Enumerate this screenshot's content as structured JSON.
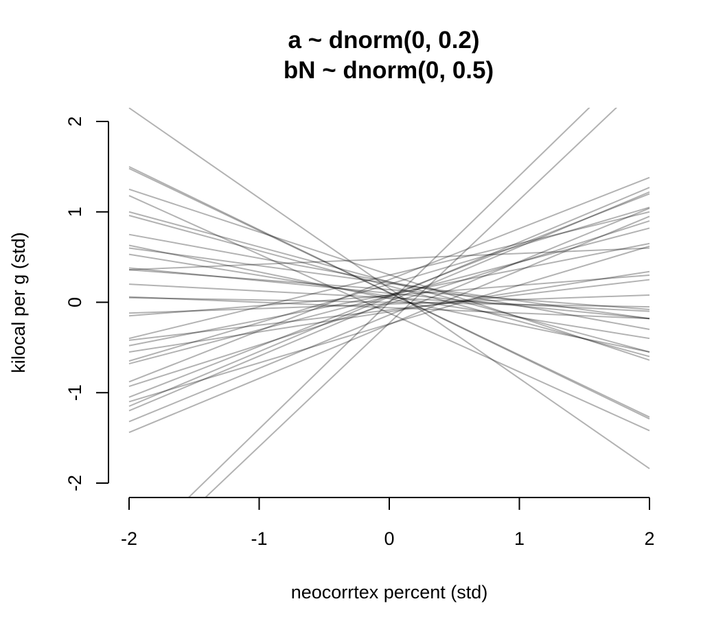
{
  "chart_data": {
    "type": "line",
    "title": "a ~ dnorm(0, 0.2)",
    "subtitle": "bN ~ dnorm(0, 0.5)",
    "xlabel": "neocorrtex percent (std)",
    "ylabel": "kilocal per g (std)",
    "xlim": [
      -2,
      2
    ],
    "ylim": [
      -2,
      2
    ],
    "x_ticks": [
      "-2",
      "-1",
      "0",
      "1",
      "2"
    ],
    "y_ticks": [
      "-2",
      "-1",
      "0",
      "1",
      "2"
    ],
    "grid": false,
    "legend": "none",
    "line_color": "#000000",
    "line_opacity": 0.3,
    "series": [
      {
        "x": [
          -2,
          2
        ],
        "y": [
          2.15,
          -1.84
        ]
      },
      {
        "x": [
          -2,
          2
        ],
        "y": [
          1.5,
          -1.29
        ]
      },
      {
        "x": [
          -2,
          2
        ],
        "y": [
          1.48,
          -1.27
        ]
      },
      {
        "x": [
          -2,
          2
        ],
        "y": [
          1.25,
          -0.64
        ]
      },
      {
        "x": [
          -2,
          2
        ],
        "y": [
          1.18,
          -1.42
        ]
      },
      {
        "x": [
          -2,
          2
        ],
        "y": [
          1.0,
          -0.55
        ]
      },
      {
        "x": [
          -2,
          2
        ],
        "y": [
          0.96,
          -0.6
        ]
      },
      {
        "x": [
          -2,
          2
        ],
        "y": [
          0.75,
          -0.3
        ]
      },
      {
        "x": [
          -2,
          2
        ],
        "y": [
          0.63,
          -0.55
        ]
      },
      {
        "x": [
          -2,
          2
        ],
        "y": [
          0.6,
          -0.18
        ]
      },
      {
        "x": [
          -2,
          2
        ],
        "y": [
          0.53,
          -0.4
        ]
      },
      {
        "x": [
          -2,
          2
        ],
        "y": [
          0.38,
          -0.18
        ]
      },
      {
        "x": [
          -2,
          2
        ],
        "y": [
          0.36,
          -0.08
        ]
      },
      {
        "x": [
          -2,
          2
        ],
        "y": [
          0.36,
          0.6
        ]
      },
      {
        "x": [
          -2,
          2
        ],
        "y": [
          0.2,
          -0.1
        ]
      },
      {
        "x": [
          -2,
          2
        ],
        "y": [
          0.06,
          -0.18
        ]
      },
      {
        "x": [
          -2,
          2
        ],
        "y": [
          0.05,
          -0.05
        ]
      },
      {
        "x": [
          -2,
          2
        ],
        "y": [
          -0.12,
          0.08
        ]
      },
      {
        "x": [
          -2,
          2
        ],
        "y": [
          -0.15,
          0.3
        ]
      },
      {
        "x": [
          -2,
          2
        ],
        "y": [
          -0.4,
          1.0
        ]
      },
      {
        "x": [
          -2,
          2
        ],
        "y": [
          -0.42,
          0.25
        ]
      },
      {
        "x": [
          -2,
          2
        ],
        "y": [
          -0.48,
          0.65
        ]
      },
      {
        "x": [
          -2,
          2
        ],
        "y": [
          -0.55,
          0.34
        ]
      },
      {
        "x": [
          -2,
          2
        ],
        "y": [
          -0.65,
          1.05
        ]
      },
      {
        "x": [
          -2,
          2
        ],
        "y": [
          -0.68,
          0.82
        ]
      },
      {
        "x": [
          -2,
          2
        ],
        "y": [
          -0.88,
          1.38
        ]
      },
      {
        "x": [
          -2,
          2
        ],
        "y": [
          -0.93,
          0.9
        ]
      },
      {
        "x": [
          -2,
          2
        ],
        "y": [
          -1.05,
          1.2
        ]
      },
      {
        "x": [
          -2,
          2
        ],
        "y": [
          -1.1,
          0.62
        ]
      },
      {
        "x": [
          -2,
          2
        ],
        "y": [
          -1.15,
          1.27
        ]
      },
      {
        "x": [
          -2,
          2
        ],
        "y": [
          -1.2,
          1.22
        ]
      },
      {
        "x": [
          -2,
          2
        ],
        "y": [
          -1.32,
          1.04
        ]
      },
      {
        "x": [
          -2,
          2
        ],
        "y": [
          -1.44,
          0.95
        ]
      },
      {
        "x": [
          -2,
          2
        ],
        "y": [
          -2.96,
          2.5
        ]
      },
      {
        "x": [
          -2,
          2
        ],
        "y": [
          -2.8,
          2.8
        ]
      }
    ]
  }
}
